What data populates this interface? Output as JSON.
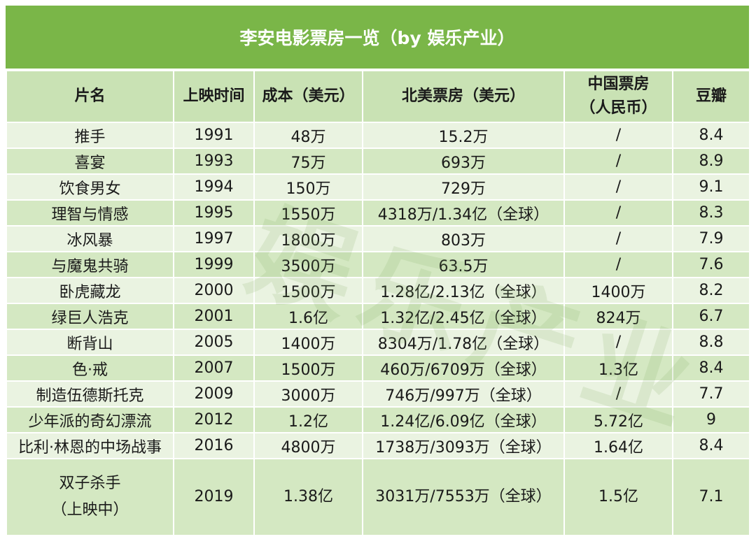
{
  "title": "李安电影票房一览（by 娱乐产业）",
  "headers": {
    "name": "片名",
    "release": "上映时间",
    "cost": "成本（美元）",
    "na_box": "北美票房（美元）",
    "cn_box_line1": "中国票房",
    "cn_box_line2": "（人民币）",
    "douban": "豆瓣"
  },
  "rows": [
    {
      "name": "推手",
      "year": "1991",
      "cost": "48万",
      "na": "15.2万",
      "cn": "/",
      "douban": "8.4"
    },
    {
      "name": "喜宴",
      "year": "1993",
      "cost": "75万",
      "na": "693万",
      "cn": "/",
      "douban": "8.9"
    },
    {
      "name": "饮食男女",
      "year": "1994",
      "cost": "150万",
      "na": "729万",
      "cn": "/",
      "douban": "9.1"
    },
    {
      "name": "理智与情感",
      "year": "1995",
      "cost": "1550万",
      "na": "4318万/1.34亿（全球）",
      "cn": "/",
      "douban": "8.3"
    },
    {
      "name": "冰风暴",
      "year": "1997",
      "cost": "1800万",
      "na": "803万",
      "cn": "/",
      "douban": "7.9"
    },
    {
      "name": "与魔鬼共骑",
      "year": "1999",
      "cost": "3500万",
      "na": "63.5万",
      "cn": "/",
      "douban": "7.6"
    },
    {
      "name": "卧虎藏龙",
      "year": "2000",
      "cost": "1500万",
      "na": "1.28亿/2.13亿（全球）",
      "cn": "1400万",
      "douban": "8.2"
    },
    {
      "name": "绿巨人浩克",
      "year": "2001",
      "cost": "1.6亿",
      "na": "1.32亿/2.45亿（全球）",
      "cn": "824万",
      "douban": "6.7"
    },
    {
      "name": "断背山",
      "year": "2005",
      "cost": "1400万",
      "na": "8304万/1.78亿（全球）",
      "cn": "/",
      "douban": "8.8"
    },
    {
      "name": "色·戒",
      "year": "2007",
      "cost": "1500万",
      "na": "460万/6709万（全球）",
      "cn": "1.3亿",
      "douban": "8.4"
    },
    {
      "name": "制造伍德斯托克",
      "year": "2009",
      "cost": "3000万",
      "na": "746万/997万（全球）",
      "cn": "/",
      "douban": "7.7"
    },
    {
      "name": "少年派的奇幻漂流",
      "year": "2012",
      "cost": "1.2亿",
      "na": "1.24亿/6.09亿（全球）",
      "cn": "5.72亿",
      "douban": "9"
    },
    {
      "name": "比利·林恩的中场战事",
      "year": "2016",
      "cost": "4800万",
      "na": "1738万/3093万（全球）",
      "cn": "1.64亿",
      "douban": "8.4"
    }
  ],
  "last_row": {
    "name_line1": "双子杀手",
    "name_line2": "（上映中）",
    "year": "2019",
    "cost": "1.38亿",
    "na": "3031万/7553万（全球）",
    "cn": "1.5亿",
    "douban": "7.1"
  },
  "watermark": "娱乐产业"
}
